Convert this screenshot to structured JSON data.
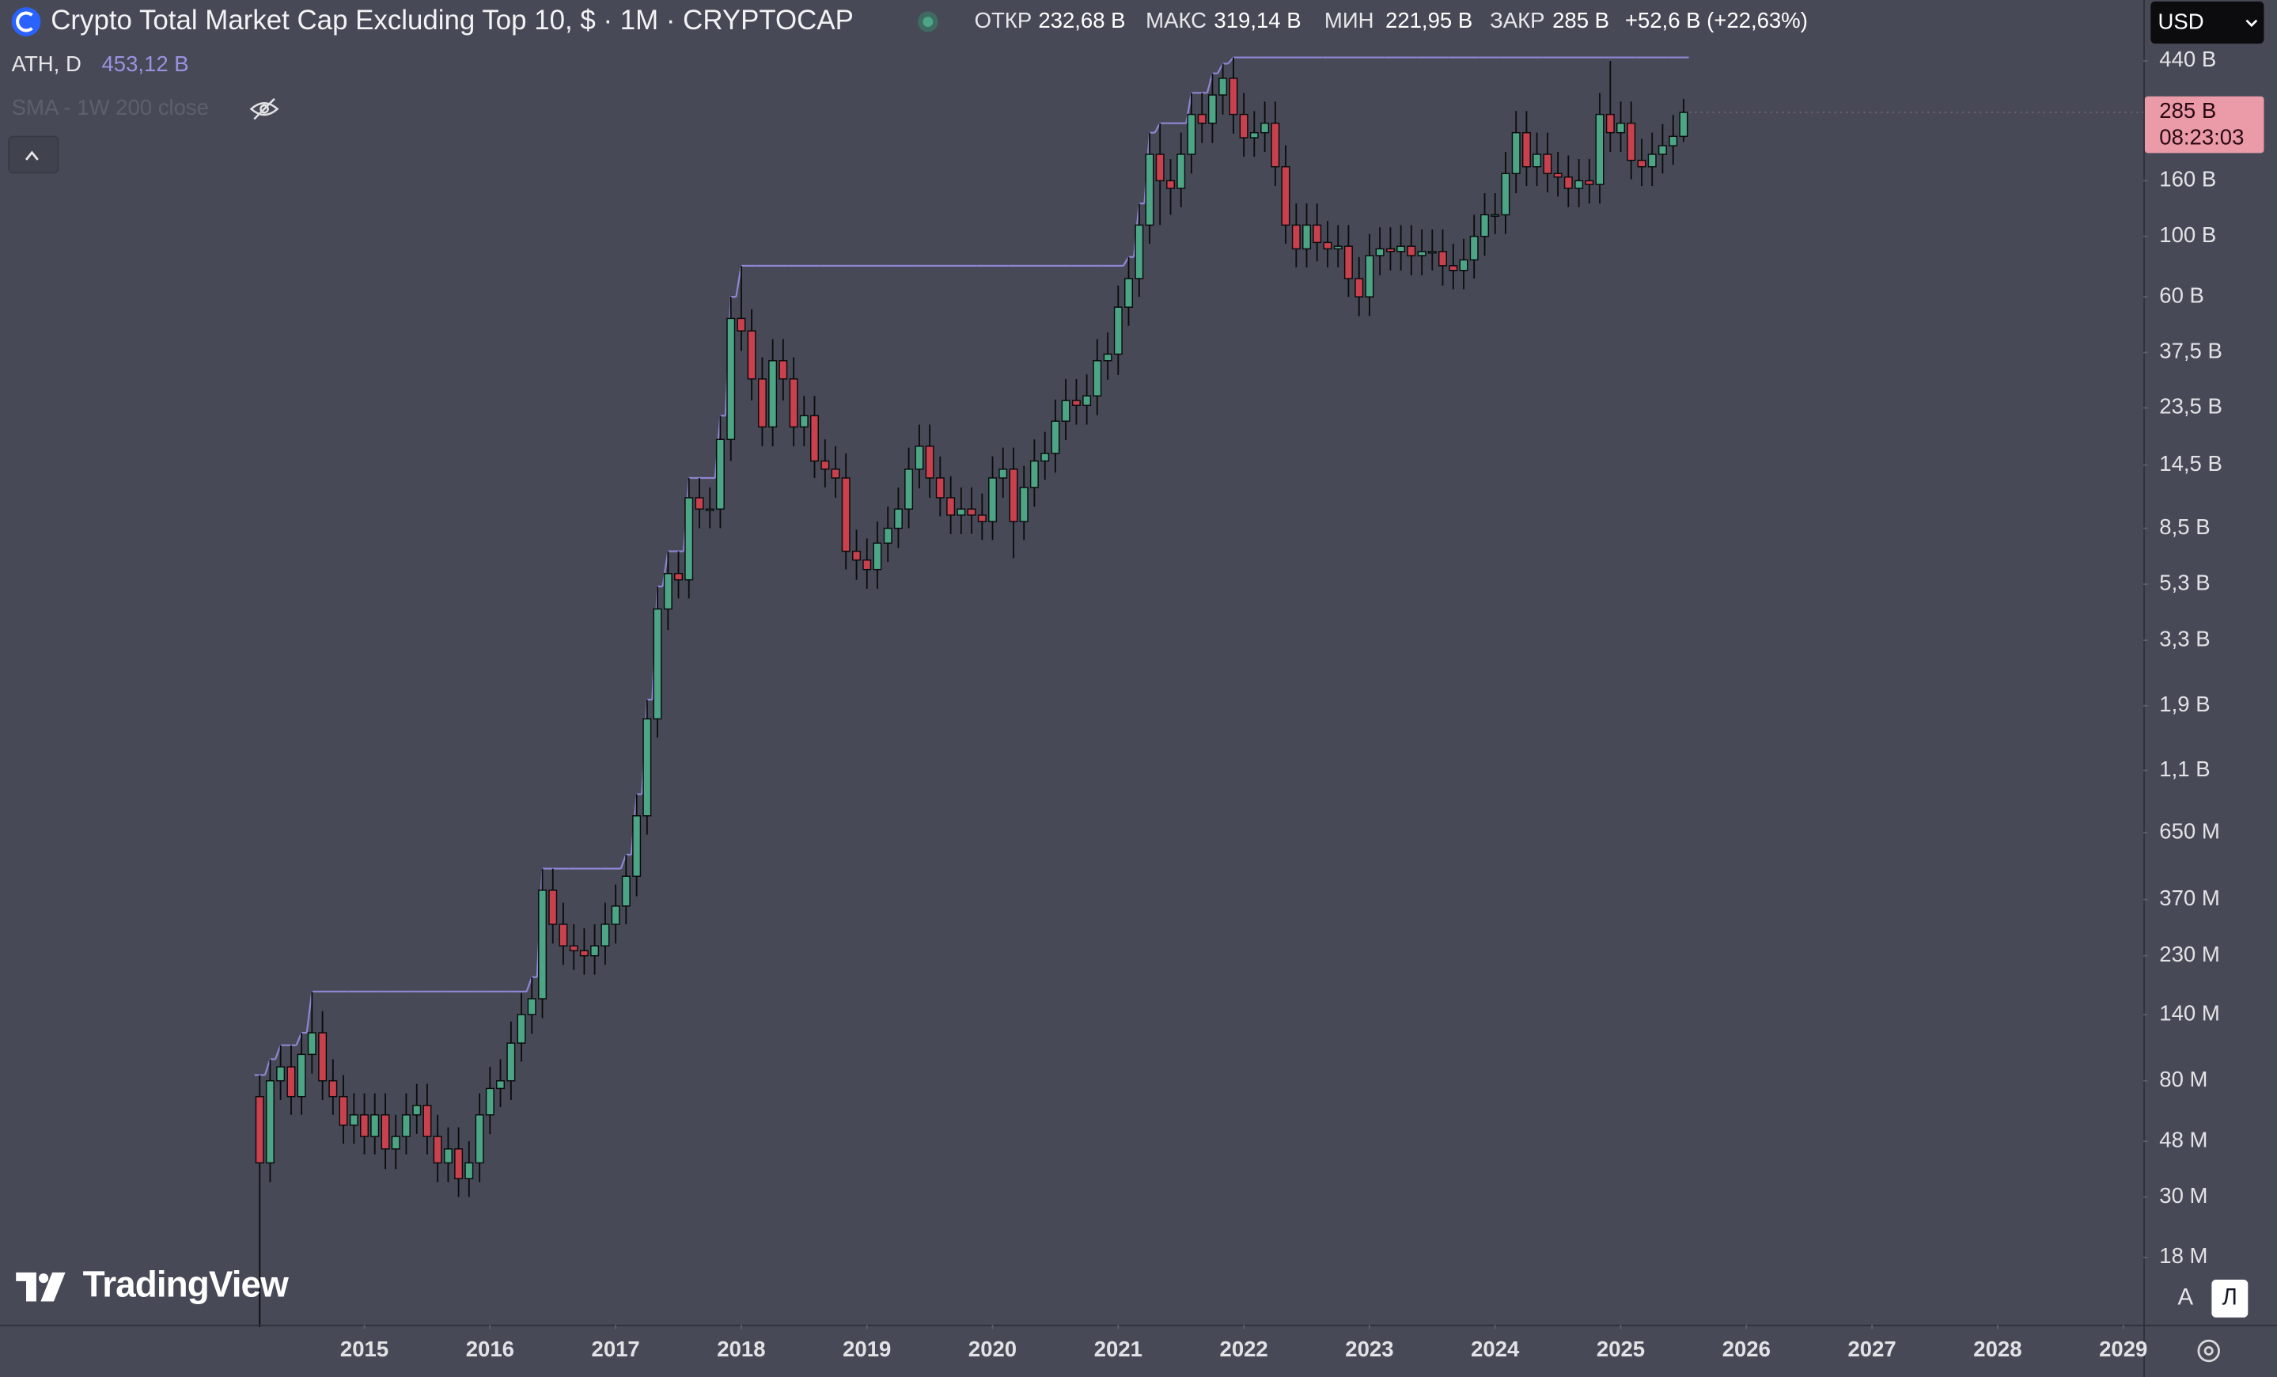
{
  "chart_data": {
    "type": "candlestick",
    "title": "Crypto Total Market Cap Excluding Top 10, $ · 1M · CRYPTOCAP",
    "x": [
      2014.167,
      2014.25,
      2014.333,
      2014.417,
      2014.5,
      2014.583,
      2014.667,
      2014.75,
      2014.833,
      2014.917,
      2015,
      2015.083,
      2015.167,
      2015.25,
      2015.333,
      2015.417,
      2015.5,
      2015.583,
      2015.667,
      2015.75,
      2015.833,
      2015.917,
      2016,
      2016.083,
      2016.167,
      2016.25,
      2016.333,
      2016.417,
      2016.5,
      2016.583,
      2016.667,
      2016.75,
      2016.833,
      2016.917,
      2017,
      2017.083,
      2017.167,
      2017.25,
      2017.333,
      2017.417,
      2017.5,
      2017.583,
      2017.667,
      2017.75,
      2017.833,
      2017.917,
      2018,
      2018.083,
      2018.167,
      2018.25,
      2018.333,
      2018.417,
      2018.5,
      2018.583,
      2018.667,
      2018.75,
      2018.833,
      2018.917,
      2019,
      2019.083,
      2019.167,
      2019.25,
      2019.333,
      2019.417,
      2019.5,
      2019.583,
      2019.667,
      2019.75,
      2019.833,
      2019.917,
      2020,
      2020.083,
      2020.167,
      2020.25,
      2020.333,
      2020.417,
      2020.5,
      2020.583,
      2020.667,
      2020.75,
      2020.833,
      2020.917,
      2021,
      2021.083,
      2021.167,
      2021.25,
      2021.333,
      2021.417,
      2021.5,
      2021.583,
      2021.667,
      2021.75,
      2021.833,
      2021.917,
      2022,
      2022.083,
      2022.167,
      2022.25,
      2022.333,
      2022.417,
      2022.5,
      2022.583,
      2022.667,
      2022.75,
      2022.833,
      2022.917,
      2023,
      2023.083,
      2023.167,
      2023.25,
      2023.333,
      2023.417,
      2023.5,
      2023.583,
      2023.667,
      2023.75,
      2023.833,
      2023.917,
      2024,
      2024.083,
      2024.167,
      2024.25,
      2024.333,
      2024.417,
      2024.5,
      2024.583,
      2024.667,
      2024.75,
      2024.833,
      2024.917,
      2025,
      2025.083,
      2025.167,
      2025.25,
      2025.333,
      2025.417,
      2025.5
    ],
    "open": [
      0.07,
      0.04,
      0.08,
      0.09,
      0.07,
      0.1,
      0.12,
      0.08,
      0.07,
      0.055,
      0.06,
      0.05,
      0.06,
      0.045,
      0.05,
      0.06,
      0.065,
      0.05,
      0.04,
      0.045,
      0.035,
      0.04,
      0.06,
      0.075,
      0.08,
      0.11,
      0.14,
      0.16,
      0.4,
      0.3,
      0.25,
      0.24,
      0.23,
      0.25,
      0.3,
      0.35,
      0.45,
      0.75,
      1.7,
      4.3,
      5.8,
      5.5,
      11,
      10,
      10,
      18,
      50,
      45,
      30,
      20,
      35,
      30,
      20,
      22,
      15,
      14,
      13,
      7,
      6.5,
      6,
      7.5,
      8.5,
      10,
      14,
      17,
      13,
      11,
      9.5,
      10,
      9.5,
      9,
      13,
      14,
      9,
      12,
      15,
      16,
      21,
      25,
      24,
      26,
      35,
      37,
      55,
      70,
      110,
      200,
      160,
      150,
      200,
      280,
      260,
      330,
      380,
      280,
      230,
      240,
      260,
      180,
      110,
      90,
      110,
      95,
      90,
      92,
      70,
      60,
      85,
      90,
      88,
      92,
      85,
      88,
      88,
      78,
      75,
      82,
      100,
      120,
      120,
      170,
      240,
      180,
      200,
      170,
      165,
      150,
      160,
      155,
      280,
      240,
      260,
      190,
      180,
      200,
      215,
      232.68
    ],
    "high": [
      0.084,
      0.096,
      0.108,
      0.108,
      0.12,
      0.17,
      0.144,
      0.096,
      0.084,
      0.072,
      0.072,
      0.072,
      0.072,
      0.06,
      0.072,
      0.078,
      0.078,
      0.06,
      0.054,
      0.054,
      0.048,
      0.072,
      0.09,
      0.096,
      0.132,
      0.168,
      0.192,
      0.48,
      0.48,
      0.36,
      0.3,
      0.29,
      0.3,
      0.36,
      0.42,
      0.54,
      0.9,
      2.0,
      5.2,
      7.0,
      7.0,
      13,
      13,
      12,
      22,
      60,
      78,
      54,
      36,
      42,
      42,
      36,
      26,
      26,
      18,
      17,
      16,
      8.4,
      7.8,
      9,
      10.2,
      12,
      16.8,
      20.4,
      20.4,
      15.6,
      13.2,
      12,
      12,
      11.4,
      15.6,
      16.8,
      16.8,
      14.4,
      18,
      19.2,
      25.2,
      30,
      30,
      31.2,
      42,
      44.4,
      66,
      84,
      132,
      240,
      260,
      192,
      240,
      336,
      336,
      396,
      430,
      453.12,
      336,
      288,
      312,
      312,
      216,
      132,
      132,
      132,
      114,
      110,
      110,
      84,
      102,
      108,
      108,
      110,
      110,
      106,
      106,
      106,
      94,
      98,
      120,
      144,
      144,
      204,
      288,
      288,
      240,
      240,
      204,
      198,
      192,
      192,
      336,
      440,
      312,
      312,
      228,
      240,
      258,
      279,
      319.14
    ],
    "low": [
      0.01,
      0.034,
      0.068,
      0.06,
      0.06,
      0.085,
      0.068,
      0.06,
      0.047,
      0.047,
      0.043,
      0.043,
      0.038,
      0.038,
      0.043,
      0.051,
      0.043,
      0.034,
      0.034,
      0.03,
      0.03,
      0.034,
      0.051,
      0.064,
      0.068,
      0.094,
      0.119,
      0.136,
      0.255,
      0.213,
      0.204,
      0.196,
      0.196,
      0.213,
      0.255,
      0.3,
      0.38,
      0.64,
      1.45,
      3.6,
      4.7,
      4.7,
      8.5,
      8.5,
      8.5,
      15,
      38,
      25,
      17,
      17,
      25,
      17,
      17,
      13,
      12,
      11,
      6,
      5.5,
      5.1,
      5.1,
      6.4,
      7.2,
      8.5,
      11.9,
      11,
      9.4,
      8.1,
      8.1,
      8.1,
      7.7,
      7.7,
      11,
      6.6,
      7.7,
      10.2,
      12.8,
      13.6,
      17.9,
      20.4,
      20.4,
      22.1,
      29.8,
      31,
      47,
      60,
      94,
      110,
      120,
      128,
      170,
      220,
      220,
      280,
      238,
      196,
      196,
      204,
      153,
      94,
      77,
      77,
      81,
      77,
      77,
      60,
      51,
      51,
      72,
      75,
      75,
      72,
      72,
      75,
      66,
      64,
      64,
      70,
      85,
      102,
      102,
      144,
      153,
      153,
      145,
      140,
      128,
      128,
      132,
      132,
      204,
      204,
      162,
      153,
      153,
      170,
      183,
      221.95
    ],
    "close": [
      0.04,
      0.08,
      0.09,
      0.07,
      0.1,
      0.12,
      0.08,
      0.07,
      0.055,
      0.06,
      0.05,
      0.06,
      0.045,
      0.05,
      0.06,
      0.065,
      0.05,
      0.04,
      0.045,
      0.035,
      0.04,
      0.06,
      0.075,
      0.08,
      0.11,
      0.14,
      0.16,
      0.4,
      0.3,
      0.25,
      0.24,
      0.23,
      0.25,
      0.3,
      0.35,
      0.45,
      0.75,
      1.7,
      4.3,
      5.8,
      5.5,
      11,
      10,
      10,
      18,
      50,
      45,
      30,
      20,
      35,
      30,
      20,
      22,
      15,
      14,
      13,
      7,
      6.5,
      6,
      7.5,
      8.5,
      10,
      14,
      17,
      13,
      11,
      9.5,
      10,
      9.5,
      9,
      13,
      14,
      9,
      12,
      15,
      16,
      21,
      25,
      24,
      26,
      35,
      37,
      55,
      70,
      110,
      200,
      160,
      150,
      200,
      280,
      260,
      330,
      380,
      280,
      230,
      240,
      260,
      180,
      110,
      90,
      110,
      95,
      90,
      92,
      70,
      60,
      85,
      90,
      88,
      92,
      85,
      88,
      88,
      78,
      75,
      82,
      100,
      120,
      120,
      170,
      240,
      180,
      200,
      170,
      165,
      150,
      160,
      155,
      280,
      240,
      260,
      190,
      180,
      200,
      215,
      232.68,
      285
    ],
    "up_color": "#4ca585",
    "down_color": "#c8414d",
    "wick_color": "#0b0b0d",
    "ath_color": "#8e86d4",
    "xlim": [
      2012.1,
      2029.16
    ],
    "xticks": [
      2015,
      2016,
      2017,
      2018,
      2019,
      2020,
      2021,
      2022,
      2023,
      2024,
      2025,
      2026,
      2027,
      2028,
      2029
    ],
    "ylim": [
      0.0102,
      736
    ],
    "log_scale": true,
    "yticks": [
      {
        "value": 440,
        "label": "440 B"
      },
      {
        "value": 160,
        "label": "160 B"
      },
      {
        "value": 100,
        "label": "100 B"
      },
      {
        "value": 60,
        "label": "60 B"
      },
      {
        "value": 37.5,
        "label": "37,5 B"
      },
      {
        "value": 23.5,
        "label": "23,5 B"
      },
      {
        "value": 14.5,
        "label": "14,5 B"
      },
      {
        "value": 8.5,
        "label": "8,5 B"
      },
      {
        "value": 5.3,
        "label": "5,3 B"
      },
      {
        "value": 3.3,
        "label": "3,3 B"
      },
      {
        "value": 1.9,
        "label": "1,9 B"
      },
      {
        "value": 1.1,
        "label": "1,1 B"
      },
      {
        "value": 0.65,
        "label": "650 M"
      },
      {
        "value": 0.37,
        "label": "370 M"
      },
      {
        "value": 0.23,
        "label": "230 M"
      },
      {
        "value": 0.14,
        "label": "140 M"
      },
      {
        "value": 0.08,
        "label": "80 M"
      },
      {
        "value": 0.048,
        "label": "48 M"
      },
      {
        "value": 0.03,
        "label": "30 M"
      },
      {
        "value": 0.018,
        "label": "18 M"
      }
    ],
    "price_tag": {
      "value": 285,
      "label": "285 B",
      "countdown": "08:23:03",
      "color": "#eb9aa8"
    },
    "indicators": [
      {
        "name": "ATH, D",
        "value": "453,12 B"
      },
      {
        "name": "SMA - 1W 200 close"
      }
    ]
  },
  "header": {
    "ohlc": [
      {
        "label": "ОТКР",
        "value": "232,68 B"
      },
      {
        "label": "МАКС",
        "value": "319,14 B"
      },
      {
        "label": "МИН",
        "value": "221,95 B"
      },
      {
        "label": "ЗАКР",
        "value": "285 B"
      }
    ],
    "change": "+52,6 B (+22,63%)"
  },
  "toolbar": {
    "currency": "USD",
    "scale_buttons": [
      "A",
      "Л"
    ]
  },
  "watermark": "TradingView"
}
